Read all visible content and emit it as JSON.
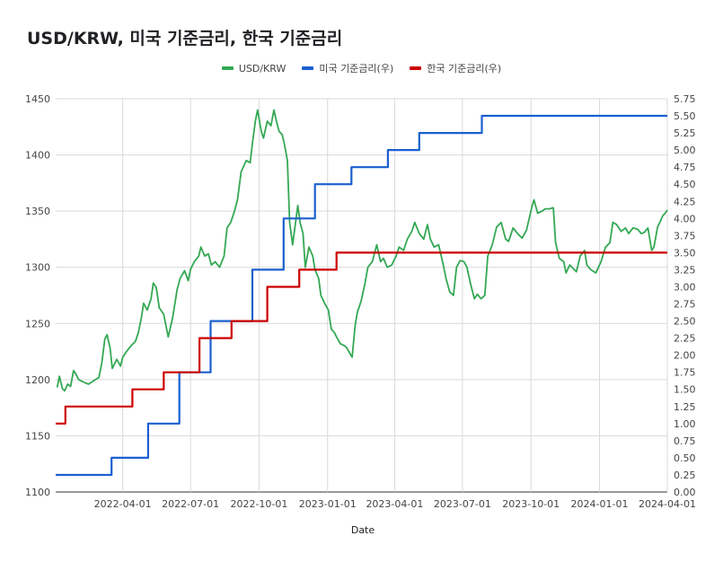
{
  "chart_data": {
    "type": "line",
    "title": "USD/KRW, 미국 기준금리, 한국 기준금리",
    "xlabel": "Date",
    "x_range": [
      "2022-01-01",
      "2024-04-01"
    ],
    "x_ticks": [
      "2022-04-01",
      "2022-07-01",
      "2022-10-01",
      "2023-01-01",
      "2023-04-01",
      "2023-07-01",
      "2023-10-01",
      "2024-01-01",
      "2024-04-01"
    ],
    "y_left": {
      "range": [
        1100,
        1450
      ],
      "ticks": [
        "1100",
        "1150",
        "1200",
        "1250",
        "1300",
        "1350",
        "1400",
        "1450"
      ]
    },
    "y_right": {
      "range": [
        0,
        5.75
      ],
      "ticks": [
        "0.00",
        "0.25",
        "0.50",
        "0.75",
        "1.00",
        "1.25",
        "1.50",
        "1.75",
        "2.00",
        "2.25",
        "2.50",
        "2.75",
        "3.00",
        "3.25",
        "3.50",
        "3.75",
        "4.00",
        "4.25",
        "4.50",
        "4.75",
        "5.00",
        "5.25",
        "5.50",
        "5.75"
      ]
    },
    "grid": true,
    "legend_position": "top",
    "series": [
      {
        "name": "USD/KRW",
        "axis": "left",
        "color": "#34a853",
        "points": [
          [
            "2022-01-03",
            1193
          ],
          [
            "2022-01-06",
            1203
          ],
          [
            "2022-01-10",
            1192
          ],
          [
            "2022-01-13",
            1190
          ],
          [
            "2022-01-17",
            1196
          ],
          [
            "2022-01-21",
            1194
          ],
          [
            "2022-01-25",
            1208
          ],
          [
            "2022-01-28",
            1205
          ],
          [
            "2022-02-01",
            1200
          ],
          [
            "2022-02-07",
            1198
          ],
          [
            "2022-02-14",
            1196
          ],
          [
            "2022-02-21",
            1199
          ],
          [
            "2022-02-28",
            1202
          ],
          [
            "2022-03-04",
            1215
          ],
          [
            "2022-03-08",
            1236
          ],
          [
            "2022-03-11",
            1240
          ],
          [
            "2022-03-15",
            1228
          ],
          [
            "2022-03-18",
            1210
          ],
          [
            "2022-03-24",
            1218
          ],
          [
            "2022-03-29",
            1212
          ],
          [
            "2022-04-01",
            1220
          ],
          [
            "2022-04-06",
            1225
          ],
          [
            "2022-04-12",
            1230
          ],
          [
            "2022-04-18",
            1234
          ],
          [
            "2022-04-22",
            1242
          ],
          [
            "2022-04-26",
            1255
          ],
          [
            "2022-04-29",
            1268
          ],
          [
            "2022-05-04",
            1262
          ],
          [
            "2022-05-09",
            1272
          ],
          [
            "2022-05-12",
            1286
          ],
          [
            "2022-05-16",
            1282
          ],
          [
            "2022-05-20",
            1264
          ],
          [
            "2022-05-26",
            1258
          ],
          [
            "2022-06-01",
            1238
          ],
          [
            "2022-06-07",
            1255
          ],
          [
            "2022-06-13",
            1280
          ],
          [
            "2022-06-17",
            1290
          ],
          [
            "2022-06-23",
            1297
          ],
          [
            "2022-06-28",
            1288
          ],
          [
            "2022-07-01",
            1298
          ],
          [
            "2022-07-06",
            1305
          ],
          [
            "2022-07-12",
            1310
          ],
          [
            "2022-07-15",
            1318
          ],
          [
            "2022-07-20",
            1310
          ],
          [
            "2022-07-25",
            1312
          ],
          [
            "2022-07-29",
            1302
          ],
          [
            "2022-08-03",
            1305
          ],
          [
            "2022-08-09",
            1300
          ],
          [
            "2022-08-15",
            1310
          ],
          [
            "2022-08-19",
            1335
          ],
          [
            "2022-08-24",
            1340
          ],
          [
            "2022-08-29",
            1350
          ],
          [
            "2022-09-02",
            1360
          ],
          [
            "2022-09-07",
            1385
          ],
          [
            "2022-09-14",
            1395
          ],
          [
            "2022-09-19",
            1393
          ],
          [
            "2022-09-22",
            1410
          ],
          [
            "2022-09-26",
            1430
          ],
          [
            "2022-09-29",
            1440
          ],
          [
            "2022-10-04",
            1421
          ],
          [
            "2022-10-07",
            1415
          ],
          [
            "2022-10-12",
            1430
          ],
          [
            "2022-10-17",
            1426
          ],
          [
            "2022-10-21",
            1440
          ],
          [
            "2022-10-25",
            1428
          ],
          [
            "2022-10-28",
            1421
          ],
          [
            "2022-11-01",
            1418
          ],
          [
            "2022-11-04",
            1410
          ],
          [
            "2022-11-08",
            1395
          ],
          [
            "2022-11-11",
            1340
          ],
          [
            "2022-11-15",
            1320
          ],
          [
            "2022-11-18",
            1335
          ],
          [
            "2022-11-22",
            1355
          ],
          [
            "2022-11-25",
            1340
          ],
          [
            "2022-11-29",
            1330
          ],
          [
            "2022-12-02",
            1300
          ],
          [
            "2022-12-07",
            1318
          ],
          [
            "2022-12-12",
            1310
          ],
          [
            "2022-12-15",
            1298
          ],
          [
            "2022-12-20",
            1290
          ],
          [
            "2022-12-23",
            1275
          ],
          [
            "2022-12-28",
            1268
          ],
          [
            "2023-01-02",
            1262
          ],
          [
            "2023-01-06",
            1245
          ],
          [
            "2023-01-10",
            1242
          ],
          [
            "2023-01-13",
            1238
          ],
          [
            "2023-01-18",
            1232
          ],
          [
            "2023-01-24",
            1230
          ],
          [
            "2023-01-27",
            1228
          ],
          [
            "2023-02-01",
            1222
          ],
          [
            "2023-02-03",
            1220
          ],
          [
            "2023-02-07",
            1248
          ],
          [
            "2023-02-10",
            1260
          ],
          [
            "2023-02-15",
            1270
          ],
          [
            "2023-02-20",
            1285
          ],
          [
            "2023-02-24",
            1300
          ],
          [
            "2023-03-02",
            1305
          ],
          [
            "2023-03-08",
            1320
          ],
          [
            "2023-03-13",
            1305
          ],
          [
            "2023-03-17",
            1308
          ],
          [
            "2023-03-22",
            1300
          ],
          [
            "2023-03-28",
            1302
          ],
          [
            "2023-04-03",
            1310
          ],
          [
            "2023-04-07",
            1318
          ],
          [
            "2023-04-13",
            1315
          ],
          [
            "2023-04-18",
            1325
          ],
          [
            "2023-04-24",
            1332
          ],
          [
            "2023-04-28",
            1340
          ],
          [
            "2023-05-04",
            1330
          ],
          [
            "2023-05-10",
            1325
          ],
          [
            "2023-05-15",
            1338
          ],
          [
            "2023-05-19",
            1325
          ],
          [
            "2023-05-24",
            1318
          ],
          [
            "2023-05-30",
            1320
          ],
          [
            "2023-06-05",
            1303
          ],
          [
            "2023-06-09",
            1290
          ],
          [
            "2023-06-14",
            1278
          ],
          [
            "2023-06-19",
            1275
          ],
          [
            "2023-06-23",
            1300
          ],
          [
            "2023-06-28",
            1306
          ],
          [
            "2023-07-03",
            1305
          ],
          [
            "2023-07-07",
            1300
          ],
          [
            "2023-07-12",
            1285
          ],
          [
            "2023-07-17",
            1272
          ],
          [
            "2023-07-21",
            1276
          ],
          [
            "2023-07-26",
            1272
          ],
          [
            "2023-07-31",
            1275
          ],
          [
            "2023-08-04",
            1310
          ],
          [
            "2023-08-10",
            1320
          ],
          [
            "2023-08-16",
            1336
          ],
          [
            "2023-08-22",
            1340
          ],
          [
            "2023-08-28",
            1325
          ],
          [
            "2023-09-01",
            1323
          ],
          [
            "2023-09-07",
            1335
          ],
          [
            "2023-09-13",
            1330
          ],
          [
            "2023-09-19",
            1326
          ],
          [
            "2023-09-25",
            1333
          ],
          [
            "2023-10-02",
            1353
          ],
          [
            "2023-10-05",
            1360
          ],
          [
            "2023-10-10",
            1348
          ],
          [
            "2023-10-16",
            1350
          ],
          [
            "2023-10-20",
            1352
          ],
          [
            "2023-10-26",
            1352
          ],
          [
            "2023-10-31",
            1353
          ],
          [
            "2023-11-03",
            1322
          ],
          [
            "2023-11-08",
            1308
          ],
          [
            "2023-11-14",
            1305
          ],
          [
            "2023-11-17",
            1295
          ],
          [
            "2023-11-22",
            1302
          ],
          [
            "2023-11-28",
            1298
          ],
          [
            "2023-12-01",
            1296
          ],
          [
            "2023-12-06",
            1310
          ],
          [
            "2023-12-12",
            1315
          ],
          [
            "2023-12-15",
            1302
          ],
          [
            "2023-12-20",
            1298
          ],
          [
            "2023-12-27",
            1295
          ],
          [
            "2024-01-03",
            1305
          ],
          [
            "2024-01-09",
            1318
          ],
          [
            "2024-01-15",
            1322
          ],
          [
            "2024-01-19",
            1340
          ],
          [
            "2024-01-24",
            1338
          ],
          [
            "2024-01-30",
            1332
          ],
          [
            "2024-02-05",
            1335
          ],
          [
            "2024-02-09",
            1330
          ],
          [
            "2024-02-15",
            1335
          ],
          [
            "2024-02-21",
            1334
          ],
          [
            "2024-02-26",
            1330
          ],
          [
            "2024-03-01",
            1331
          ],
          [
            "2024-03-06",
            1335
          ],
          [
            "2024-03-11",
            1315
          ],
          [
            "2024-03-14",
            1318
          ],
          [
            "2024-03-19",
            1336
          ],
          [
            "2024-03-22",
            1340
          ],
          [
            "2024-03-26",
            1346
          ],
          [
            "2024-03-29",
            1348
          ],
          [
            "2024-04-01",
            1351
          ]
        ]
      },
      {
        "name": "미국 기준금리(우)",
        "axis": "right",
        "color": "#1a5fcf",
        "step": true,
        "points": [
          [
            "2022-01-01",
            0.25
          ],
          [
            "2022-03-17",
            0.5
          ],
          [
            "2022-05-05",
            1.0
          ],
          [
            "2022-06-16",
            1.75
          ],
          [
            "2022-07-28",
            2.5
          ],
          [
            "2022-09-22",
            3.25
          ],
          [
            "2022-11-03",
            4.0
          ],
          [
            "2022-12-15",
            4.5
          ],
          [
            "2023-02-02",
            4.75
          ],
          [
            "2023-03-23",
            5.0
          ],
          [
            "2023-05-04",
            5.25
          ],
          [
            "2023-07-27",
            5.5
          ],
          [
            "2024-04-01",
            5.5
          ]
        ]
      },
      {
        "name": "한국 기준금리(우)",
        "axis": "right",
        "color": "#cc0000",
        "step": true,
        "points": [
          [
            "2022-01-01",
            1.0
          ],
          [
            "2022-01-14",
            1.25
          ],
          [
            "2022-04-14",
            1.5
          ],
          [
            "2022-05-26",
            1.75
          ],
          [
            "2022-07-13",
            2.25
          ],
          [
            "2022-08-25",
            2.5
          ],
          [
            "2022-10-12",
            3.0
          ],
          [
            "2022-11-24",
            3.25
          ],
          [
            "2023-01-13",
            3.5
          ],
          [
            "2024-04-01",
            3.5
          ]
        ]
      }
    ]
  }
}
